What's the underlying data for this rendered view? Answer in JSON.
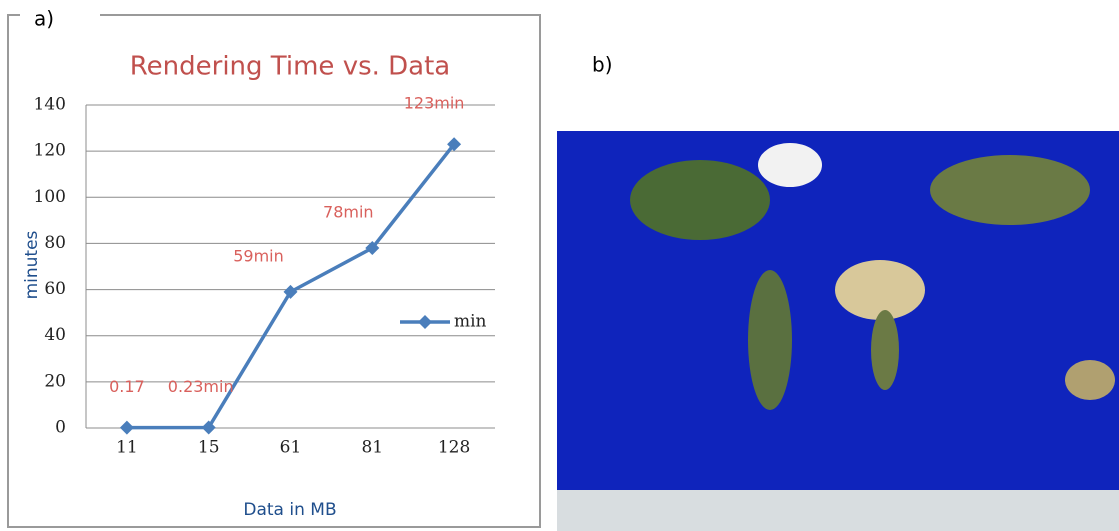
{
  "panel_labels": [
    "a)",
    "b)"
  ],
  "chart_data": {
    "type": "line",
    "title": "Rendering Time vs. Data",
    "x_label": "Data in MB",
    "y_label": "minutes",
    "categories": [
      "11",
      "15",
      "61",
      "81",
      "128"
    ],
    "series": [
      {
        "name": "min",
        "color": "#4a7ebb",
        "values": [
          0.17,
          0.23,
          59,
          78,
          123
        ],
        "value_labels": [
          "0.17",
          "0.23min",
          "59min",
          "78min",
          "123min"
        ]
      }
    ],
    "ylim": [
      0,
      140
    ],
    "yticks": [
      0,
      20,
      40,
      60,
      80,
      100,
      120,
      140
    ],
    "grid": true,
    "legend": "right"
  }
}
